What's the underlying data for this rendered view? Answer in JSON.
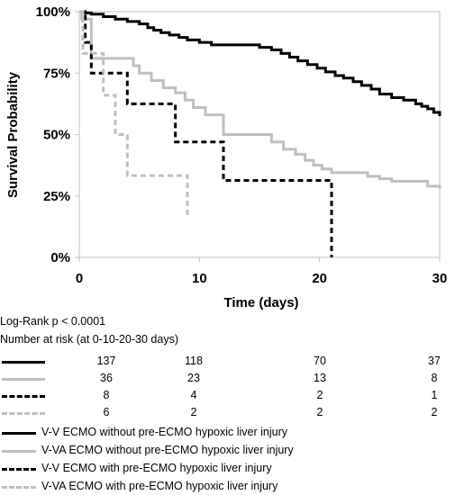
{
  "chart_data": {
    "type": "line",
    "title": "",
    "xlabel": "Time (days)",
    "ylabel": "Survival Probability",
    "xlim": [
      0,
      30
    ],
    "ylim": [
      0,
      1
    ],
    "x_ticks": [
      0,
      10,
      20,
      30
    ],
    "x_tick_labels": [
      "0",
      "10",
      "20",
      "30"
    ],
    "y_ticks": [
      0,
      0.25,
      0.5,
      0.75,
      1
    ],
    "y_tick_labels": [
      "0%",
      "25%",
      "50%",
      "75%",
      "100%"
    ],
    "grid": false,
    "series": [
      {
        "name": "V-V ECMO without pre-ECMO hypoxic liver injury",
        "color": "#000000",
        "dash": "solid",
        "x": [
          0,
          0.5,
          1,
          2,
          3,
          4,
          5,
          5.7,
          6.2,
          6.8,
          7.5,
          8.3,
          9,
          10,
          11,
          12,
          13,
          14,
          15,
          16,
          16.8,
          17.5,
          18.2,
          19,
          19.8,
          20.5,
          21.3,
          22,
          22.8,
          23.5,
          24.3,
          25,
          26,
          27,
          28,
          28.5,
          29,
          29.5,
          30
        ],
        "y": [
          1.0,
          0.995,
          0.99,
          0.98,
          0.97,
          0.96,
          0.95,
          0.935,
          0.925,
          0.915,
          0.905,
          0.895,
          0.885,
          0.875,
          0.865,
          0.865,
          0.865,
          0.865,
          0.855,
          0.845,
          0.83,
          0.815,
          0.8,
          0.785,
          0.77,
          0.755,
          0.74,
          0.73,
          0.715,
          0.7,
          0.685,
          0.665,
          0.65,
          0.64,
          0.625,
          0.615,
          0.605,
          0.59,
          0.575
        ]
      },
      {
        "name": "V-VA ECMO without pre-ECMO hypoxic liver injury",
        "color": "#bebebe",
        "dash": "solid",
        "x": [
          0,
          0.2,
          1,
          3,
          4.5,
          5,
          6,
          7,
          8,
          8.8,
          9.5,
          10.5,
          12,
          13,
          14,
          15,
          16,
          17,
          18,
          18.8,
          19.5,
          20.2,
          21,
          22,
          23,
          24,
          25,
          26,
          29,
          30
        ],
        "y": [
          1.0,
          0.97,
          0.81,
          0.81,
          0.78,
          0.75,
          0.72,
          0.69,
          0.67,
          0.64,
          0.61,
          0.58,
          0.5,
          0.5,
          0.5,
          0.5,
          0.47,
          0.44,
          0.42,
          0.395,
          0.375,
          0.36,
          0.345,
          0.345,
          0.345,
          0.33,
          0.32,
          0.31,
          0.29,
          0.28
        ]
      },
      {
        "name": "V-V ECMO with pre-ECMO hypoxic liver injury",
        "color": "#000000",
        "dash": "dash",
        "x": [
          0,
          0.5,
          1,
          4,
          8,
          12,
          21
        ],
        "y": [
          1.0,
          0.875,
          0.75,
          0.625,
          0.47,
          0.313,
          0.0
        ]
      },
      {
        "name": "V-VA ECMO with pre-ECMO hypoxic liver injury",
        "color": "#bebebe",
        "dash": "dash",
        "x": [
          0,
          0.3,
          1,
          2,
          3,
          4,
          9
        ],
        "y": [
          1.0,
          0.83,
          0.83,
          0.66,
          0.5,
          0.333,
          0.167
        ]
      }
    ],
    "stats_text": "Log-Rank p < 0.0001",
    "risk_table": {
      "title": "Number at risk (at 0-10-20-30 days)",
      "rows": [
        {
          "series_index": 0,
          "values": [
            "137",
            "118",
            "70",
            "37"
          ]
        },
        {
          "series_index": 1,
          "values": [
            "36",
            "23",
            "13",
            "8"
          ]
        },
        {
          "series_index": 2,
          "values": [
            "8",
            "4",
            "2",
            "1"
          ]
        },
        {
          "series_index": 3,
          "values": [
            "6",
            "2",
            "2",
            "2"
          ]
        }
      ]
    },
    "legend": {
      "placement": "bottom",
      "entries": [
        "V-V ECMO without pre-ECMO hypoxic liver injury",
        "V-VA ECMO without pre-ECMO hypoxic liver injury",
        "V-V ECMO with pre-ECMO hypoxic liver injury",
        "V-VA ECMO with pre-ECMO hypoxic liver injury"
      ]
    }
  }
}
